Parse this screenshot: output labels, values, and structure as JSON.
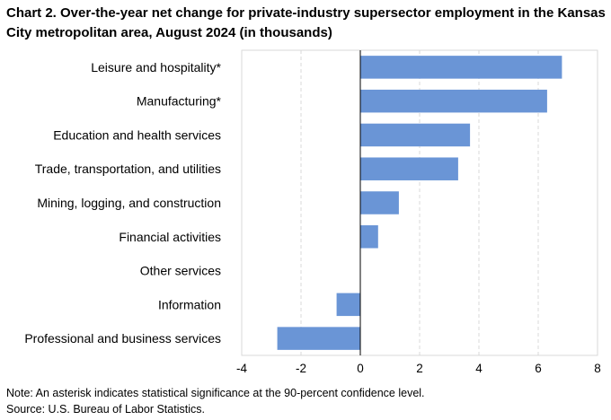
{
  "chart_data": {
    "type": "bar",
    "orientation": "horizontal",
    "title": "Chart 2. Over-the-year net change for private-industry supersector employment in the Kansas City metropolitan area, August 2024 (in thousands)",
    "categories": [
      "Leisure and hospitality*",
      "Manufacturing*",
      "Education and health services",
      "Trade, transportation, and utilities",
      "Mining, logging, and construction",
      "Financial activities",
      "Other services",
      "Information",
      "Professional and business services"
    ],
    "values": [
      6.8,
      6.3,
      3.7,
      3.3,
      1.3,
      0.6,
      0.0,
      -0.8,
      -2.8
    ],
    "xlim": [
      -4,
      8
    ],
    "xticks": [
      -4,
      -2,
      0,
      2,
      4,
      6,
      8
    ],
    "xtick_labels": [
      "-4",
      "-2",
      "0",
      "2",
      "4",
      "6",
      "8"
    ],
    "xlabel": "",
    "ylabel": "",
    "grid": "vertical dashed",
    "bar_color": "#6a95d6"
  },
  "footnotes": {
    "note": "Note: An asterisk indicates statistical significance at the 90-percent confidence level.",
    "source": "Source: U.S. Bureau of Labor Statistics."
  }
}
